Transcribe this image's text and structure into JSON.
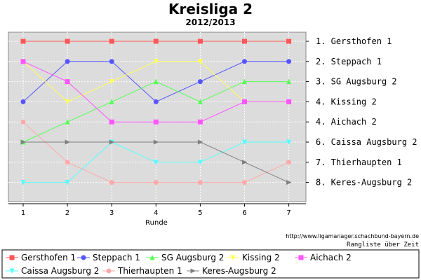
{
  "chart_data": {
    "type": "line",
    "title": "Kreisliga 2",
    "subtitle": "2012/2013",
    "xlabel": "Runde",
    "x": [
      1,
      2,
      3,
      4,
      5,
      6,
      7
    ],
    "ylim": [
      1,
      8
    ],
    "y_inverted": true,
    "grid": true,
    "legend_position": "bottom",
    "rank_labels": [
      "1. Gersthofen 1",
      "2. Steppach 1",
      "3. SG Augsburg 2",
      "4. Kissing 2",
      "4. Aichach 2",
      "6. Caissa Augsburg 2",
      "7. Thierhaupten 1",
      "8. Keres-Augsburg  2"
    ],
    "series": [
      {
        "name": "Gersthofen 1",
        "color": "#ff5555",
        "marker": "square",
        "values": [
          1,
          1,
          1,
          1,
          1,
          1,
          1
        ]
      },
      {
        "name": "Steppach 1",
        "color": "#5555ff",
        "marker": "circle",
        "values": [
          4,
          2,
          2,
          4,
          3,
          2,
          2
        ]
      },
      {
        "name": "SG Augsburg 2",
        "color": "#55ff55",
        "marker": "triangle-up",
        "values": [
          6,
          5,
          4,
          3,
          4,
          3,
          3
        ]
      },
      {
        "name": "Kissing 2",
        "color": "#ffff55",
        "marker": "triangle-down",
        "values": [
          2,
          4,
          3,
          2,
          2,
          4,
          4
        ]
      },
      {
        "name": "Aichach 2",
        "color": "#ff55ff",
        "marker": "square",
        "values": [
          2,
          3,
          5,
          5,
          5,
          4,
          4
        ]
      },
      {
        "name": "Caissa Augsburg 2",
        "color": "#55ffff",
        "marker": "triangle-down",
        "values": [
          8,
          8,
          6,
          7,
          7,
          6,
          6
        ]
      },
      {
        "name": "Thierhaupten 1",
        "color": "#ffaaaa",
        "marker": "circle",
        "values": [
          5,
          7,
          8,
          8,
          8,
          8,
          7
        ]
      },
      {
        "name": "Keres-Augsburg  2",
        "color": "#808080",
        "marker": "triangle-right",
        "values": [
          6,
          6,
          6,
          6,
          6,
          7,
          8
        ]
      }
    ]
  },
  "footer": {
    "url": "http://www.ligamanager.schachbund-bayern.de",
    "caption": "Rangliste über Zeit"
  }
}
